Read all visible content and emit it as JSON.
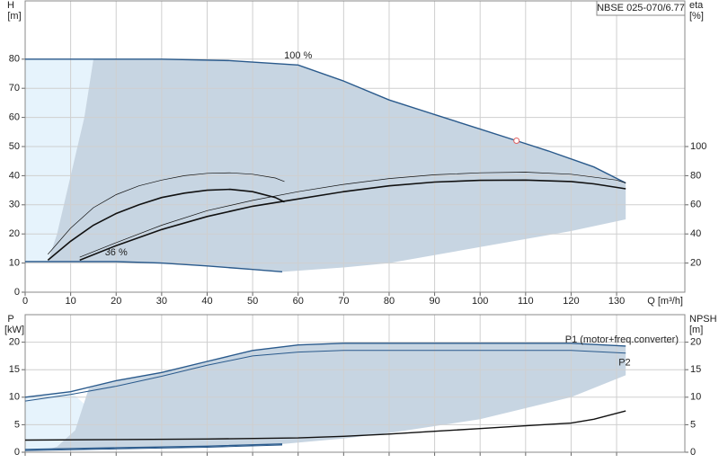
{
  "chart_data": [
    {
      "type": "line",
      "title": "NBSE 025-070/6.77",
      "ylabel": "H",
      "yunit": "[m]",
      "y2label": "eta",
      "y2unit": "[%]",
      "xlabel": "Q [m³/h]",
      "xlim": [
        0,
        145
      ],
      "xticks": [
        0,
        10,
        20,
        30,
        40,
        50,
        60,
        70,
        80,
        90,
        100,
        110,
        120,
        130
      ],
      "ylim": [
        0,
        100
      ],
      "yticks": [
        0,
        10,
        20,
        30,
        40,
        50,
        60,
        70,
        80
      ],
      "y2lim": [
        0,
        200
      ],
      "y2ticks": [
        20,
        40,
        60,
        80,
        100
      ],
      "grid": true,
      "regions": [
        {
          "color": "#e6f3fc",
          "x": [
            0,
            15,
            13,
            10,
            7,
            5,
            0
          ],
          "y": [
            80,
            80,
            60,
            40,
            20,
            10.5,
            10.5
          ]
        },
        {
          "color": "#c7d5e2",
          "x": [
            15,
            30,
            45,
            60,
            70,
            80,
            90,
            100,
            108,
            115,
            125,
            132,
            132,
            120,
            100,
            80,
            70,
            56.5,
            40,
            20,
            5,
            7,
            10,
            13
          ],
          "y": [
            80,
            80,
            79.5,
            78,
            72.5,
            66,
            61,
            56,
            52,
            48.5,
            43,
            37.5,
            25,
            21,
            15.5,
            10,
            8.5,
            7,
            9,
            10.5,
            10.5,
            20,
            40,
            60
          ]
        }
      ],
      "series": [
        {
          "name": "100 %",
          "color": "#2a5a8c",
          "linewidth": 1.4,
          "x": [
            0,
            15,
            30,
            45,
            60,
            70,
            80,
            90,
            100,
            108,
            115,
            125,
            132
          ],
          "values": [
            80,
            80,
            80,
            79.5,
            78,
            72.5,
            66,
            61,
            56,
            52,
            48.5,
            43,
            37.5
          ]
        },
        {
          "name": "36 %",
          "color": "#2a5a8c",
          "linewidth": 1.4,
          "x": [
            0,
            20,
            30,
            40,
            50,
            56.5
          ],
          "values": [
            10.5,
            10.5,
            10,
            9,
            7.8,
            7
          ]
        },
        {
          "color": "#111111",
          "linewidth": 0.7,
          "axis": "y2",
          "x": [
            5,
            10,
            15,
            20,
            25,
            30,
            35,
            40,
            45,
            50,
            55,
            57
          ],
          "values": [
            26,
            44,
            58,
            67,
            73,
            77,
            80,
            81.6,
            82,
            81,
            78.4,
            76
          ]
        },
        {
          "color": "#111111",
          "linewidth": 1.6,
          "axis": "y2",
          "x": [
            5,
            10,
            15,
            20,
            25,
            30,
            35,
            40,
            45,
            50,
            55,
            57
          ],
          "values": [
            22,
            35,
            46,
            54,
            60,
            65,
            68,
            70,
            70.6,
            69,
            65,
            62
          ]
        },
        {
          "color": "#111111",
          "linewidth": 0.7,
          "axis": "y2",
          "x": [
            12,
            20,
            30,
            40,
            50,
            60,
            70,
            80,
            90,
            100,
            110,
            120,
            130,
            132
          ],
          "values": [
            24,
            34,
            46,
            56,
            63,
            69,
            74,
            78,
            80.6,
            82,
            82.4,
            81,
            77,
            75
          ]
        },
        {
          "color": "#111111",
          "linewidth": 1.6,
          "axis": "y2",
          "x": [
            12,
            20,
            30,
            40,
            50,
            60,
            70,
            80,
            90,
            100,
            110,
            120,
            125,
            132
          ],
          "values": [
            22,
            32,
            43,
            52,
            59,
            64,
            69,
            73,
            75.6,
            76.8,
            77,
            76,
            74.4,
            71
          ]
        }
      ],
      "duty_point": {
        "x": 108,
        "y": 52,
        "color": "#e06060"
      }
    },
    {
      "type": "line",
      "ylabel": "P",
      "yunit": "[kW]",
      "y2label": "NPSH",
      "y2unit": "[m]",
      "xlim": [
        0,
        145
      ],
      "ylim": [
        0,
        25
      ],
      "yticks": [
        0,
        5,
        10,
        15,
        20
      ],
      "y2lim": [
        0,
        25
      ],
      "y2ticks": [
        0,
        5,
        10,
        15,
        20
      ],
      "grid": true,
      "regions": [
        {
          "color": "#e6f3fc",
          "x": [
            0,
            10,
            14,
            11,
            7,
            5,
            0
          ],
          "y": [
            10,
            11,
            8,
            4,
            1,
            0.5,
            0.5
          ]
        },
        {
          "color": "#c7d5e2",
          "x": [
            14,
            20,
            30,
            40,
            50,
            60,
            70,
            80,
            100,
            120,
            132,
            132,
            120,
            100,
            80,
            70,
            56.5,
            40,
            20,
            5,
            7,
            11
          ],
          "y": [
            11.6,
            13,
            14.5,
            16.5,
            18.5,
            19.5,
            19.8,
            19.8,
            19.8,
            19.8,
            19.3,
            14,
            10,
            6,
            3.5,
            2.5,
            1.5,
            1.1,
            0.8,
            0.5,
            1,
            4
          ]
        }
      ],
      "series": [
        {
          "name": "P1 (motor+freq.converter)",
          "color": "#2a5a8c",
          "linewidth": 1.4,
          "x": [
            0,
            10,
            20,
            30,
            40,
            50,
            60,
            70,
            80,
            100,
            120,
            132
          ],
          "values": [
            10,
            11,
            13,
            14.5,
            16.5,
            18.5,
            19.5,
            19.8,
            19.8,
            19.8,
            19.8,
            19.3
          ]
        },
        {
          "name": "P2",
          "color": "#2a5a8c",
          "linewidth": 1,
          "x": [
            0,
            10,
            20,
            30,
            40,
            50,
            60,
            70,
            100,
            120,
            132
          ],
          "values": [
            9.3,
            10.5,
            12,
            13.8,
            15.8,
            17.5,
            18.2,
            18.5,
            18.5,
            18.5,
            18
          ]
        },
        {
          "color": "#111111",
          "linewidth": 1.4,
          "axis": "y2",
          "x": [
            0,
            20,
            40,
            60,
            70,
            80,
            90,
            100,
            110,
            120,
            125,
            132
          ],
          "values": [
            2.2,
            2.3,
            2.4,
            2.6,
            2.9,
            3.3,
            3.8,
            4.3,
            4.8,
            5.3,
            6,
            7.5
          ]
        },
        {
          "color": "#2a5a8c",
          "linewidth": 1.4,
          "x": [
            0,
            20,
            40,
            56.5
          ],
          "values": [
            0.5,
            0.8,
            1.1,
            1.5
          ]
        },
        {
          "color": "#2a5a8c",
          "linewidth": 1,
          "x": [
            0,
            20,
            40,
            56.5
          ],
          "values": [
            0.3,
            0.6,
            0.9,
            1.3
          ]
        }
      ]
    }
  ]
}
